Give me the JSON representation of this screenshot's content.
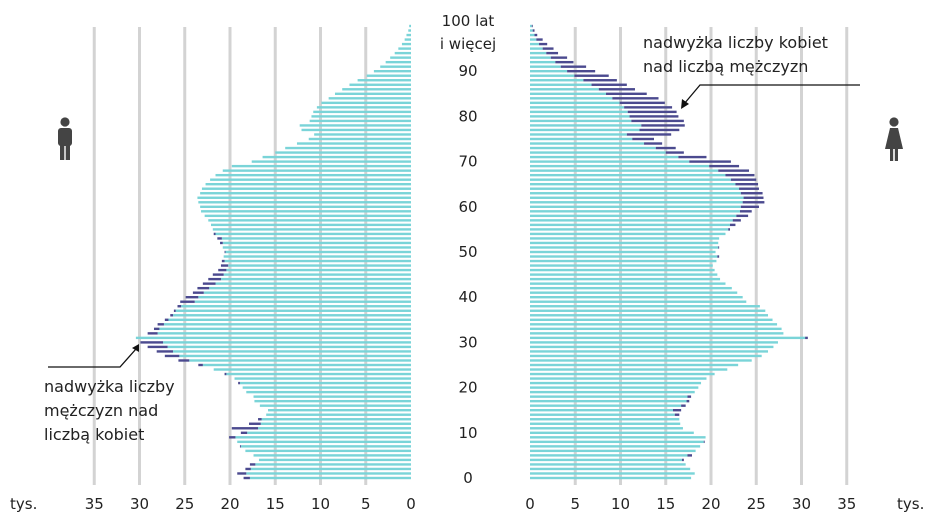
{
  "chart_data": {
    "type": "bar",
    "subtype": "population-pyramid",
    "age_labels": [
      {
        "age": 0,
        "label": "0"
      },
      {
        "age": 10,
        "label": "10"
      },
      {
        "age": 20,
        "label": "20"
      },
      {
        "age": 30,
        "label": "30"
      },
      {
        "age": 40,
        "label": "40"
      },
      {
        "age": 50,
        "label": "50"
      },
      {
        "age": 60,
        "label": "60"
      },
      {
        "age": 70,
        "label": "70"
      },
      {
        "age": 80,
        "label": "80"
      },
      {
        "age": 90,
        "label": "90"
      }
    ],
    "top_label_line1": "100 lat",
    "top_label_line2": "i więcej",
    "unit": "tys.",
    "x_ticks_men": [
      "35",
      "30",
      "25",
      "20",
      "15",
      "10",
      "5",
      "0"
    ],
    "x_ticks_women": [
      "0",
      "5",
      "10",
      "15",
      "20",
      "25",
      "30",
      "35"
    ],
    "x_tick_values": [
      35,
      30,
      25,
      20,
      15,
      10,
      5,
      0
    ],
    "xlim": [
      0,
      35
    ],
    "grid": true,
    "colors": {
      "base": "#7ad4d8",
      "excess": "#4b4a8f",
      "grid": "#d3d3d3"
    },
    "men_icon": "male-person-icon",
    "women_icon": "female-person-icon",
    "annotation_women": {
      "line1": "nadwyżka liczby kobiet",
      "line2": "nad liczbą mężczyzn"
    },
    "annotation_men": {
      "line1": "nadwyżka liczby",
      "line2": "mężczyzn nad",
      "line3": "liczbą kobiet"
    },
    "ages": [
      0,
      1,
      2,
      3,
      4,
      5,
      6,
      7,
      8,
      9,
      10,
      11,
      12,
      13,
      14,
      15,
      16,
      17,
      18,
      19,
      20,
      21,
      22,
      23,
      24,
      25,
      26,
      27,
      28,
      29,
      30,
      31,
      32,
      33,
      34,
      35,
      36,
      37,
      38,
      39,
      40,
      41,
      42,
      43,
      44,
      45,
      46,
      47,
      48,
      49,
      50,
      51,
      52,
      53,
      54,
      55,
      56,
      57,
      58,
      59,
      60,
      61,
      62,
      63,
      64,
      65,
      66,
      67,
      68,
      69,
      70,
      71,
      72,
      73,
      74,
      75,
      76,
      77,
      78,
      79,
      80,
      81,
      82,
      83,
      84,
      85,
      86,
      87,
      88,
      89,
      90,
      91,
      92,
      93,
      94,
      95,
      96,
      97,
      98,
      99,
      100
    ],
    "series": [
      {
        "name": "mężczyźni",
        "values": [
          18.5,
          19.2,
          18.3,
          17.8,
          16.8,
          17.4,
          18.3,
          18.9,
          19.2,
          20.1,
          18.8,
          19.8,
          17.9,
          16.9,
          16.0,
          15.8,
          16.7,
          17.3,
          17.4,
          18.2,
          18.6,
          19.1,
          19.5,
          20.6,
          21.8,
          23.5,
          25.7,
          27.2,
          28.1,
          29.1,
          29.9,
          30.4,
          29.1,
          28.4,
          28.0,
          27.2,
          26.6,
          26.2,
          25.8,
          25.5,
          24.9,
          24.1,
          23.6,
          23.0,
          22.4,
          21.9,
          21.3,
          21.0,
          20.9,
          20.7,
          20.6,
          20.8,
          21.1,
          21.4,
          21.8,
          21.9,
          22.1,
          22.4,
          22.8,
          23.2,
          23.3,
          23.5,
          23.6,
          23.3,
          23.1,
          22.7,
          22.2,
          21.6,
          20.8,
          19.8,
          17.6,
          16.4,
          15.0,
          13.9,
          12.6,
          11.3,
          10.7,
          12.1,
          12.3,
          11.2,
          11.0,
          10.8,
          10.4,
          9.9,
          9.1,
          8.4,
          7.6,
          6.8,
          5.9,
          4.9,
          4.1,
          3.4,
          2.8,
          2.3,
          1.8,
          1.4,
          1.0,
          0.7,
          0.5,
          0.3,
          0.2
        ]
      },
      {
        "name": "kobiety",
        "values": [
          17.8,
          18.2,
          17.7,
          17.2,
          17.0,
          17.9,
          18.3,
          18.8,
          19.3,
          19.4,
          18.1,
          16.9,
          16.6,
          16.5,
          16.5,
          16.7,
          17.2,
          17.6,
          17.8,
          18.2,
          18.6,
          18.9,
          19.5,
          20.4,
          21.8,
          23.0,
          24.5,
          25.6,
          26.3,
          26.9,
          27.4,
          30.7,
          28.0,
          27.8,
          27.3,
          26.8,
          26.3,
          26.0,
          25.4,
          23.9,
          23.5,
          22.9,
          22.3,
          21.6,
          21.0,
          20.7,
          20.4,
          20.2,
          20.6,
          20.9,
          20.5,
          20.9,
          20.8,
          20.9,
          21.6,
          22.1,
          22.7,
          23.3,
          24.1,
          24.5,
          25.3,
          25.9,
          25.8,
          25.7,
          25.3,
          25.2,
          25.0,
          24.8,
          24.2,
          23.1,
          22.2,
          19.5,
          17.0,
          16.1,
          14.6,
          13.7,
          15.6,
          16.5,
          17.1,
          17.0,
          16.4,
          16.2,
          15.7,
          14.9,
          14.2,
          12.9,
          11.6,
          10.7,
          9.6,
          8.7,
          7.2,
          6.2,
          4.8,
          4.1,
          3.1,
          2.6,
          1.9,
          1.4,
          0.8,
          0.5,
          0.3
        ]
      }
    ]
  }
}
